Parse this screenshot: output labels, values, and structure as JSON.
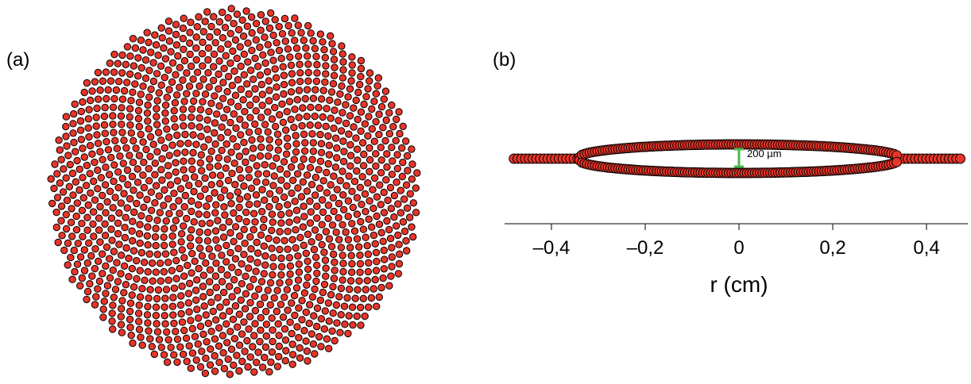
{
  "panels": {
    "a": {
      "label": "(a)"
    },
    "b": {
      "label": "(b)"
    }
  },
  "colors": {
    "marker_fill": "#e8352a",
    "marker_edge": "#000000",
    "scalebar": "#4cb84c"
  },
  "chart_data": [
    {
      "type": "scatter",
      "panel": "(a)",
      "title": "",
      "description_points": "disk of densely packed particles",
      "n_particles_approx": 1500,
      "disk_radius": 0.48
    },
    {
      "type": "scatter",
      "panel": "(b)",
      "title": "",
      "xlabel": "r (cm)",
      "ylabel": "",
      "xlim": [
        -0.5,
        0.5
      ],
      "xticks": [
        -0.4,
        -0.2,
        0,
        0.2,
        0.4
      ],
      "xtick_labels": [
        "–0,4",
        "–0,2",
        "0",
        "0,2",
        "0,4"
      ],
      "ring": {
        "r_outer_flat": 0.48,
        "r_split": 0.34,
        "gap_um": 200
      },
      "annotation": "200 µm"
    }
  ]
}
